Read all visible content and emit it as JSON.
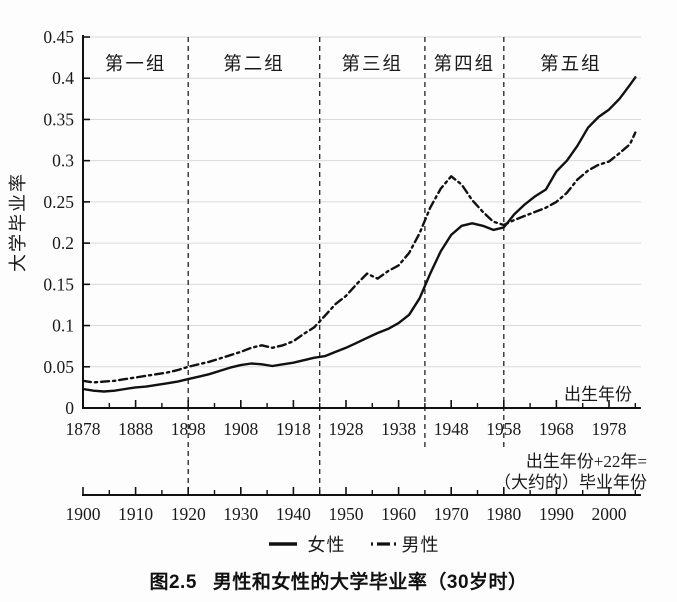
{
  "chart_data": {
    "type": "line",
    "title": "图2.5 男性和女性的大学毕业率（30岁时）",
    "ylabel": "大学毕业率",
    "ylim": [
      0,
      0.45
    ],
    "grid": true,
    "y_ticks": {
      "values": [
        0,
        0.05,
        0.1,
        0.15,
        0.2,
        0.25,
        0.3,
        0.35,
        0.4,
        0.45
      ],
      "labels": [
        "0",
        "0.05",
        "0.1",
        "0.15",
        "0.2",
        "0.25",
        "0.3",
        "0.35",
        "0.4",
        "0.45"
      ]
    },
    "x_axis_birth": {
      "label": "出生年份",
      "range": [
        1878,
        1983.5
      ],
      "major_ticks": [
        1878,
        1888,
        1898,
        1908,
        1918,
        1928,
        1938,
        1948,
        1958,
        1968,
        1978
      ],
      "minor_ticks": [
        1883,
        1893,
        1903,
        1913,
        1923,
        1933,
        1943,
        1953,
        1963,
        1973,
        1983
      ]
    },
    "x_axis_graduation": {
      "label_line1": "出生年份+22年=",
      "label_line2": "（大约的）毕业年份",
      "offset_years": 22,
      "range": [
        1900,
        2005.5
      ],
      "major_ticks": [
        1900,
        1910,
        1920,
        1930,
        1940,
        1950,
        1960,
        1970,
        1980,
        1990,
        2000
      ],
      "minor_ticks": [
        1905,
        1915,
        1925,
        1935,
        1945,
        1955,
        1965,
        1975,
        1985,
        1995,
        2005
      ]
    },
    "groups": [
      {
        "label": "第一组",
        "from": 1878,
        "to": 1898
      },
      {
        "label": "第二组",
        "from": 1898,
        "to": 1923
      },
      {
        "label": "第三组",
        "from": 1923,
        "to": 1943
      },
      {
        "label": "第四组",
        "from": 1943,
        "to": 1958
      },
      {
        "label": "第五组",
        "from": 1958,
        "to": 1983.5
      }
    ],
    "dividers": [
      {
        "year": 1898,
        "extend": "full"
      },
      {
        "year": 1923,
        "extend": "full"
      },
      {
        "year": 1943,
        "extend": "short"
      },
      {
        "year": 1958,
        "extend": "short"
      }
    ],
    "x": [
      1878,
      1880,
      1882,
      1884,
      1886,
      1888,
      1890,
      1892,
      1894,
      1896,
      1898,
      1900,
      1902,
      1904,
      1906,
      1908,
      1910,
      1912,
      1914,
      1916,
      1918,
      1920,
      1922,
      1923,
      1924,
      1926,
      1928,
      1930,
      1932,
      1934,
      1936,
      1938,
      1940,
      1942,
      1944,
      1946,
      1948,
      1950,
      1952,
      1954,
      1956,
      1958,
      1960,
      1962,
      1964,
      1966,
      1968,
      1970,
      1972,
      1974,
      1976,
      1978,
      1980,
      1982,
      1983
    ],
    "series": [
      {
        "name": "女性",
        "style": "solid",
        "values": [
          0.023,
          0.021,
          0.02,
          0.021,
          0.023,
          0.025,
          0.026,
          0.028,
          0.03,
          0.032,
          0.035,
          0.038,
          0.041,
          0.045,
          0.049,
          0.052,
          0.054,
          0.053,
          0.051,
          0.053,
          0.055,
          0.058,
          0.061,
          0.062,
          0.063,
          0.068,
          0.073,
          0.079,
          0.085,
          0.091,
          0.096,
          0.103,
          0.113,
          0.133,
          0.163,
          0.19,
          0.21,
          0.221,
          0.224,
          0.221,
          0.216,
          0.219,
          0.235,
          0.247,
          0.257,
          0.265,
          0.287,
          0.3,
          0.318,
          0.34,
          0.353,
          0.362,
          0.375,
          0.392,
          0.401
        ]
      },
      {
        "name": "男性",
        "style": "dash-dot",
        "values": [
          0.033,
          0.031,
          0.032,
          0.033,
          0.035,
          0.037,
          0.039,
          0.041,
          0.043,
          0.046,
          0.05,
          0.053,
          0.056,
          0.06,
          0.064,
          0.068,
          0.073,
          0.076,
          0.073,
          0.076,
          0.081,
          0.09,
          0.098,
          0.105,
          0.112,
          0.126,
          0.136,
          0.15,
          0.163,
          0.157,
          0.166,
          0.173,
          0.188,
          0.212,
          0.243,
          0.266,
          0.281,
          0.271,
          0.252,
          0.238,
          0.226,
          0.222,
          0.228,
          0.233,
          0.238,
          0.243,
          0.25,
          0.261,
          0.277,
          0.288,
          0.295,
          0.299,
          0.309,
          0.32,
          0.334
        ]
      }
    ],
    "legend_position": "bottom",
    "line_color": "#111111",
    "grid_color": "#d9d9d9"
  },
  "legend": [
    {
      "label": "女性",
      "style": "solid"
    },
    {
      "label": "男性",
      "style": "dash-dot"
    }
  ],
  "caption": {
    "number": "图2.5",
    "text": "男性和女性的大学毕业率（30岁时）"
  }
}
